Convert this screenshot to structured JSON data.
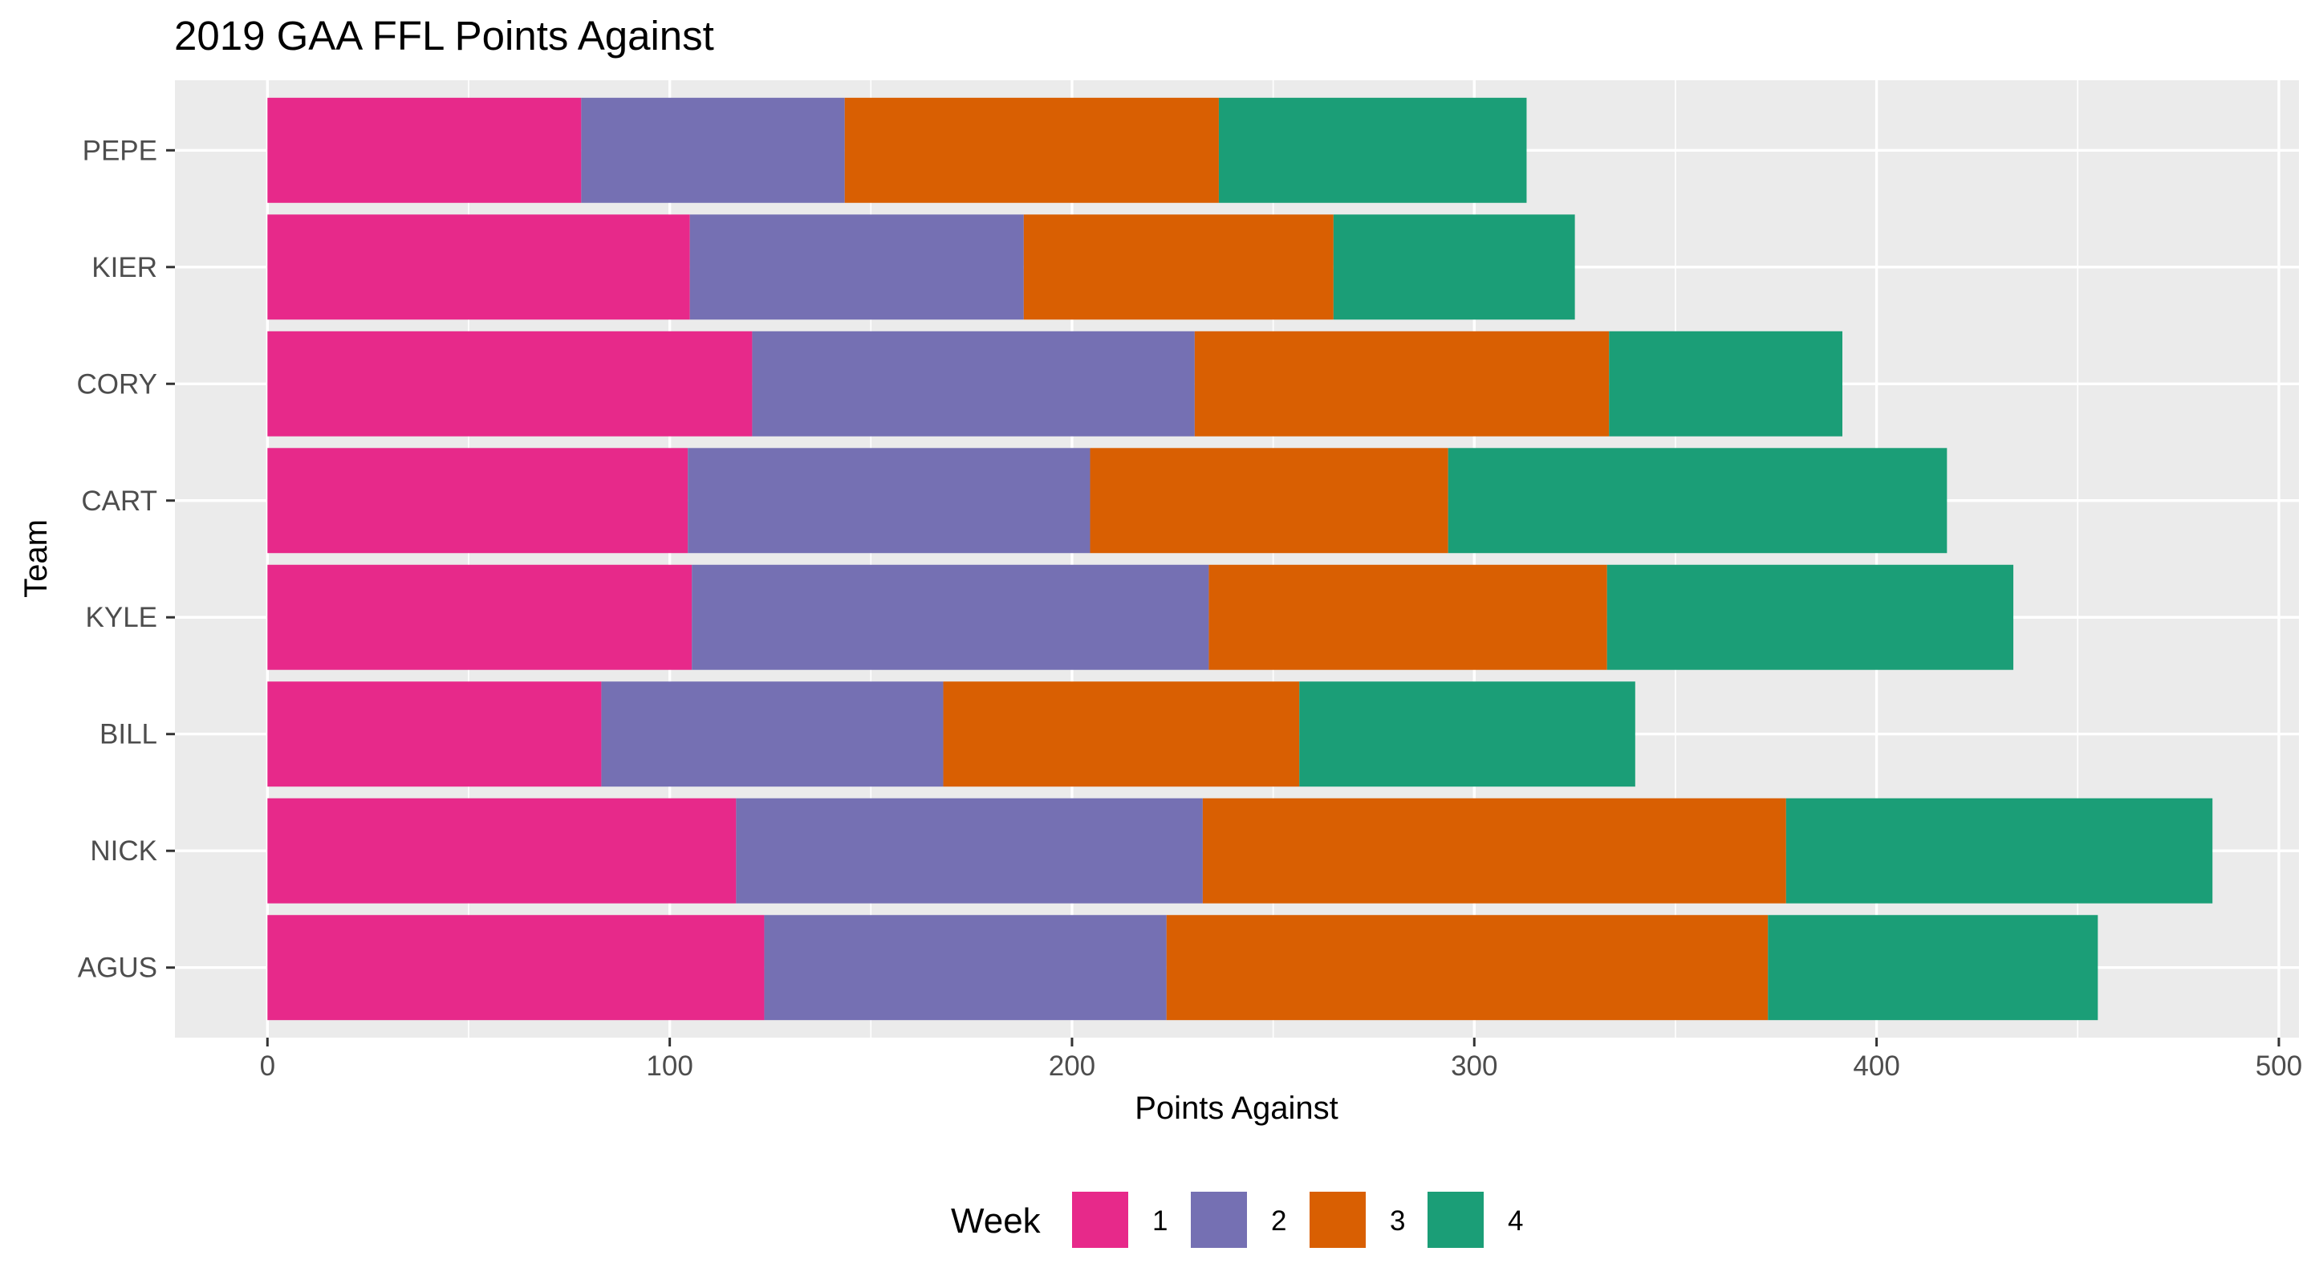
{
  "chart_data": {
    "type": "bar",
    "orientation": "horizontal",
    "stacked": true,
    "title": "2019 GAA FFL Points Against",
    "xlabel": "Points Against",
    "ylabel": "Team",
    "xlim": [
      -23,
      505
    ],
    "x_ticks": [
      0,
      100,
      200,
      300,
      400,
      500
    ],
    "x_tick_labels": [
      "0",
      "100",
      "200",
      "300",
      "400",
      "500"
    ],
    "x_minor_ticks": [
      50,
      150,
      250,
      350,
      450
    ],
    "categories": [
      "AGUS",
      "NICK",
      "BILL",
      "KYLE",
      "CART",
      "CORY",
      "KIER",
      "PEPE"
    ],
    "series": [
      {
        "name": "1",
        "color": "#E7298A",
        "values": [
          123.5,
          116.5,
          83,
          105.5,
          104.5,
          120.5,
          105,
          78
        ]
      },
      {
        "name": "2",
        "color": "#7570B3",
        "values": [
          100,
          116,
          85,
          128.5,
          100,
          110,
          83,
          65.5
        ]
      },
      {
        "name": "3",
        "color": "#D95F02",
        "values": [
          149.5,
          145,
          88.5,
          99,
          89,
          103,
          77,
          93
        ]
      },
      {
        "name": "4",
        "color": "#1B9E77",
        "values": [
          82,
          106,
          83.5,
          101,
          124,
          58,
          60,
          76.5
        ]
      }
    ],
    "legend": {
      "title": "Week",
      "position": "bottom"
    },
    "grid": true
  }
}
